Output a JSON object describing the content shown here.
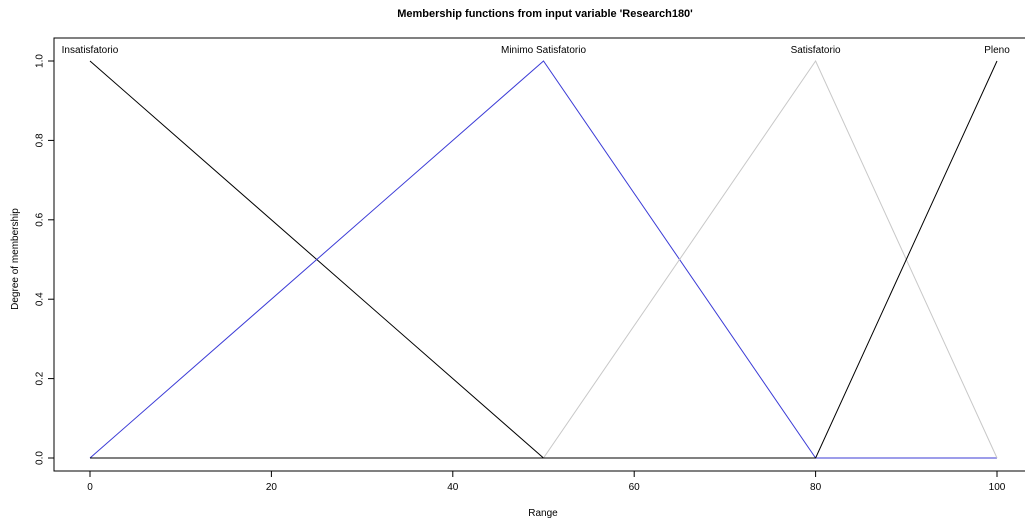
{
  "chart_data": {
    "type": "line",
    "title": "Membership functions from input variable 'Research180'",
    "xlabel": "Range",
    "ylabel": "Degree of membership",
    "xlim": [
      0,
      100
    ],
    "ylim": [
      0,
      1
    ],
    "xticks": [
      0,
      20,
      40,
      60,
      80,
      100
    ],
    "yticks": [
      0.0,
      0.2,
      0.4,
      0.6,
      0.8,
      1.0
    ],
    "yticklabels": [
      "0.0",
      "0.2",
      "0.4",
      "0.6",
      "0.8",
      "1.0"
    ],
    "grid": false,
    "legend": "none",
    "series": [
      {
        "name": "Insatisfatorio",
        "color": "#000000",
        "x": [
          0,
          50,
          100
        ],
        "y": [
          1,
          0,
          0
        ],
        "label_at": 0
      },
      {
        "name": "Minimo Satisfatorio",
        "color": "#3b3bd6",
        "x": [
          0,
          50,
          80,
          100
        ],
        "y": [
          0,
          1,
          0,
          0
        ],
        "label_at": 50
      },
      {
        "name": "Satisfatorio",
        "color": "#c8c8c8",
        "x": [
          0,
          50,
          80,
          100
        ],
        "y": [
          0,
          0,
          1,
          0
        ],
        "label_at": 80
      },
      {
        "name": "Pleno",
        "color": "#000000",
        "x": [
          0,
          80,
          100
        ],
        "y": [
          0,
          0,
          1
        ],
        "label_at": 100
      }
    ]
  }
}
